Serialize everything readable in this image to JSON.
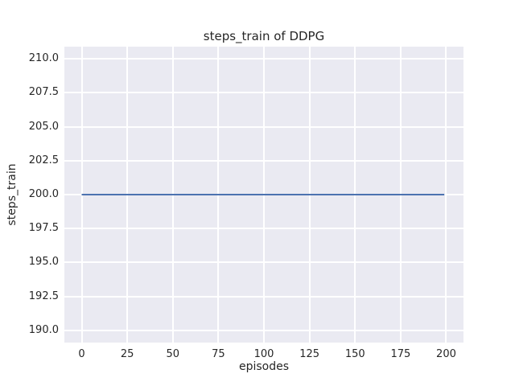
{
  "chart_data": {
    "type": "line",
    "title": "steps_train of DDPG",
    "xlabel": "episodes",
    "ylabel": "steps_train",
    "x_ticks": [
      0,
      25,
      50,
      75,
      100,
      125,
      150,
      175,
      200
    ],
    "x_tick_labels": [
      "0",
      "25",
      "50",
      "75",
      "100",
      "125",
      "150",
      "175",
      "200"
    ],
    "y_ticks": [
      190.0,
      192.5,
      195.0,
      197.5,
      200.0,
      202.5,
      205.0,
      207.5,
      210.0
    ],
    "y_tick_labels": [
      "190.0",
      "192.5",
      "195.0",
      "197.5",
      "200.0",
      "202.5",
      "205.0",
      "207.5",
      "210.0"
    ],
    "xlim": [
      -9.5,
      209.5
    ],
    "ylim": [
      189.1,
      210.9
    ],
    "grid": true,
    "legend_position": "none",
    "series": [
      {
        "name": "steps_train",
        "x": [
          0,
          199
        ],
        "y": [
          200,
          200
        ],
        "color": "#4c72b0",
        "linewidth": 2
      }
    ],
    "colors": {
      "figure_background": "#ffffff",
      "axes_background": "#eaeaf2",
      "grid": "#ffffff",
      "text": "#262626"
    }
  }
}
